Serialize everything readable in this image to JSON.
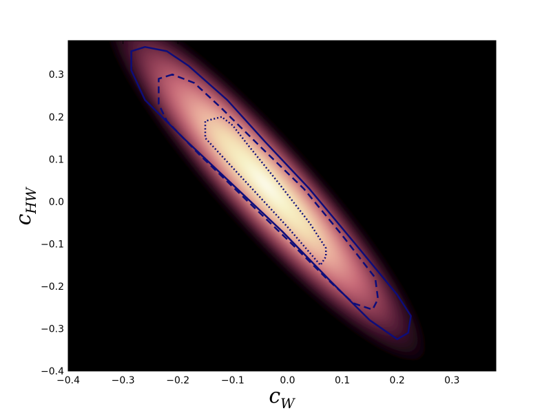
{
  "chart_data": {
    "type": "heatmap",
    "title": "",
    "xlabel": {
      "base": "c",
      "sub": "W"
    },
    "ylabel": {
      "base": "c",
      "sub": "HW"
    },
    "xlim": [
      -0.4,
      0.38
    ],
    "ylim": [
      -0.4,
      0.38
    ],
    "xticks": [
      {
        "v": -0.4,
        "label": "−0.4"
      },
      {
        "v": -0.3,
        "label": "−0.3"
      },
      {
        "v": -0.2,
        "label": "−0.2"
      },
      {
        "v": -0.1,
        "label": "−0.1"
      },
      {
        "v": 0.0,
        "label": "0.0"
      },
      {
        "v": 0.1,
        "label": "0.1"
      },
      {
        "v": 0.2,
        "label": "0.2"
      },
      {
        "v": 0.3,
        "label": "0.3"
      }
    ],
    "yticks": [
      {
        "v": -0.4,
        "label": "−0.4"
      },
      {
        "v": -0.3,
        "label": "−0.3"
      },
      {
        "v": -0.2,
        "label": "−0.2"
      },
      {
        "v": -0.1,
        "label": "−0.1"
      },
      {
        "v": 0.0,
        "label": "0.0"
      },
      {
        "v": 0.1,
        "label": "0.1"
      },
      {
        "v": 0.2,
        "label": "0.2"
      },
      {
        "v": 0.3,
        "label": "0.3"
      }
    ],
    "grid": false,
    "background_color": "#000000",
    "colormap": [
      "#000000",
      "#3b0f2a",
      "#8a3a52",
      "#c86a78",
      "#e8a89a",
      "#f3dcb0",
      "#f7f3c8",
      "#ffffff"
    ],
    "contour_color": "#0d0d7a",
    "density_peak": {
      "x": -0.04,
      "y": 0.04
    },
    "contours": [
      {
        "style": "dotted",
        "points": [
          [
            -0.12,
            0.2
          ],
          [
            -0.15,
            0.19
          ],
          [
            -0.15,
            0.15
          ],
          [
            -0.1,
            0.08
          ],
          [
            -0.05,
            0.01
          ],
          [
            0.0,
            -0.06
          ],
          [
            0.04,
            -0.12
          ],
          [
            0.06,
            -0.15
          ],
          [
            0.07,
            -0.13
          ],
          [
            0.07,
            -0.11
          ],
          [
            0.04,
            -0.05
          ],
          [
            -0.02,
            0.05
          ],
          [
            -0.07,
            0.13
          ],
          [
            -0.1,
            0.18
          ]
        ]
      },
      {
        "style": "dashed",
        "points": [
          [
            -0.21,
            0.3
          ],
          [
            -0.235,
            0.29
          ],
          [
            -0.235,
            0.23
          ],
          [
            -0.22,
            0.19
          ],
          [
            -0.16,
            0.11
          ],
          [
            -0.08,
            0.01
          ],
          [
            0.0,
            -0.09
          ],
          [
            0.07,
            -0.18
          ],
          [
            0.12,
            -0.24
          ],
          [
            0.155,
            -0.255
          ],
          [
            0.165,
            -0.23
          ],
          [
            0.16,
            -0.18
          ],
          [
            0.1,
            -0.08
          ],
          [
            0.03,
            0.03
          ],
          [
            -0.05,
            0.13
          ],
          [
            -0.12,
            0.22
          ],
          [
            -0.17,
            0.28
          ]
        ]
      },
      {
        "style": "solid",
        "points": [
          [
            -0.26,
            0.365
          ],
          [
            -0.285,
            0.355
          ],
          [
            -0.285,
            0.31
          ],
          [
            -0.26,
            0.24
          ],
          [
            -0.19,
            0.15
          ],
          [
            -0.1,
            0.04
          ],
          [
            -0.01,
            -0.07
          ],
          [
            0.08,
            -0.19
          ],
          [
            0.15,
            -0.28
          ],
          [
            0.2,
            -0.325
          ],
          [
            0.22,
            -0.31
          ],
          [
            0.225,
            -0.27
          ],
          [
            0.2,
            -0.22
          ],
          [
            0.13,
            -0.11
          ],
          [
            0.04,
            0.03
          ],
          [
            -0.04,
            0.14
          ],
          [
            -0.11,
            0.24
          ],
          [
            -0.18,
            0.32
          ],
          [
            -0.22,
            0.355
          ]
        ]
      }
    ]
  }
}
